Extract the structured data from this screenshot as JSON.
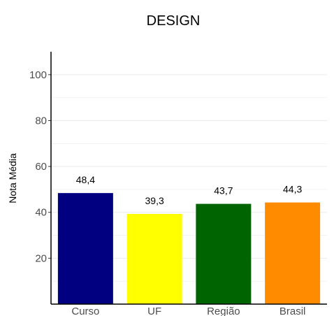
{
  "chart_data": {
    "type": "bar",
    "title": "DESIGN",
    "xlabel": "",
    "ylabel": "Nota Média",
    "categories": [
      "Curso",
      "UF",
      "Região",
      "Brasil"
    ],
    "values": [
      48.4,
      39.3,
      43.7,
      44.3
    ],
    "data_labels": [
      "48,4",
      "39,3",
      "43,7",
      "44,3"
    ],
    "colors": [
      "#000080",
      "#ffff00",
      "#006400",
      "#ff8c00"
    ],
    "ylim": [
      0,
      110
    ],
    "yticks": [
      20,
      40,
      60,
      80,
      100
    ],
    "ytick_labels": [
      "20",
      "40",
      "60",
      "80",
      "100"
    ],
    "grid": true,
    "legend": "none"
  }
}
